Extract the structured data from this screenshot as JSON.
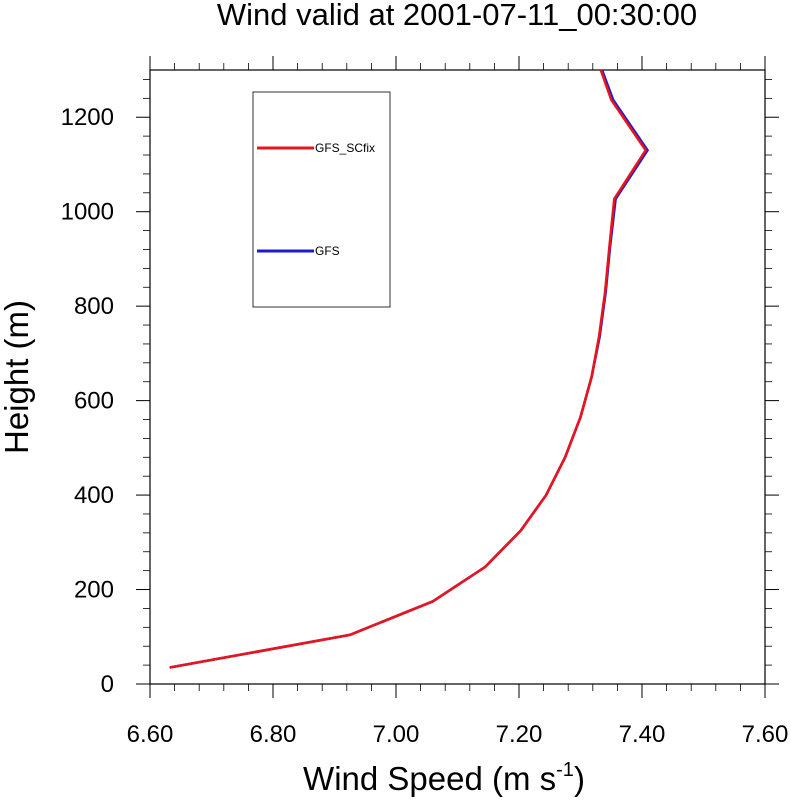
{
  "chart_data": {
    "type": "line",
    "title": "Wind valid at 2001-07-11_00:30:00",
    "xlabel": "Wind Speed (m s",
    "xlabel_superscript": "-1",
    "xlabel_close": ")",
    "ylabel": "Height (m)",
    "xlim": [
      6.6,
      7.6
    ],
    "ylim": [
      0,
      1300
    ],
    "x_ticks": [
      "6.60",
      "6.80",
      "7.00",
      "7.20",
      "7.40",
      "7.60"
    ],
    "y_ticks": [
      "0",
      "200",
      "400",
      "600",
      "800",
      "1000",
      "1200"
    ],
    "legend_position": "top-left",
    "series": [
      {
        "name": "GFS_SCfix",
        "color": "#e8151c",
        "points": [
          {
            "x": 6.632,
            "y": 35
          },
          {
            "x": 6.925,
            "y": 104
          },
          {
            "x": 7.06,
            "y": 175
          },
          {
            "x": 7.145,
            "y": 248
          },
          {
            "x": 7.203,
            "y": 325
          },
          {
            "x": 7.244,
            "y": 400
          },
          {
            "x": 7.275,
            "y": 480
          },
          {
            "x": 7.3,
            "y": 565
          },
          {
            "x": 7.318,
            "y": 650
          },
          {
            "x": 7.33,
            "y": 735
          },
          {
            "x": 7.34,
            "y": 830
          },
          {
            "x": 7.347,
            "y": 925
          },
          {
            "x": 7.355,
            "y": 1027
          },
          {
            "x": 7.406,
            "y": 1130
          },
          {
            "x": 7.35,
            "y": 1237
          },
          {
            "x": 7.333,
            "y": 1300
          }
        ]
      },
      {
        "name": "GFS",
        "color": "#1a1ad8",
        "points": [
          {
            "x": 6.632,
            "y": 35
          },
          {
            "x": 6.925,
            "y": 104
          },
          {
            "x": 7.06,
            "y": 175
          },
          {
            "x": 7.145,
            "y": 248
          },
          {
            "x": 7.203,
            "y": 325
          },
          {
            "x": 7.244,
            "y": 400
          },
          {
            "x": 7.275,
            "y": 480
          },
          {
            "x": 7.3,
            "y": 565
          },
          {
            "x": 7.318,
            "y": 650
          },
          {
            "x": 7.331,
            "y": 735
          },
          {
            "x": 7.341,
            "y": 830
          },
          {
            "x": 7.348,
            "y": 925
          },
          {
            "x": 7.357,
            "y": 1027
          },
          {
            "x": 7.409,
            "y": 1130
          },
          {
            "x": 7.353,
            "y": 1237
          },
          {
            "x": 7.335,
            "y": 1300
          }
        ]
      }
    ]
  }
}
